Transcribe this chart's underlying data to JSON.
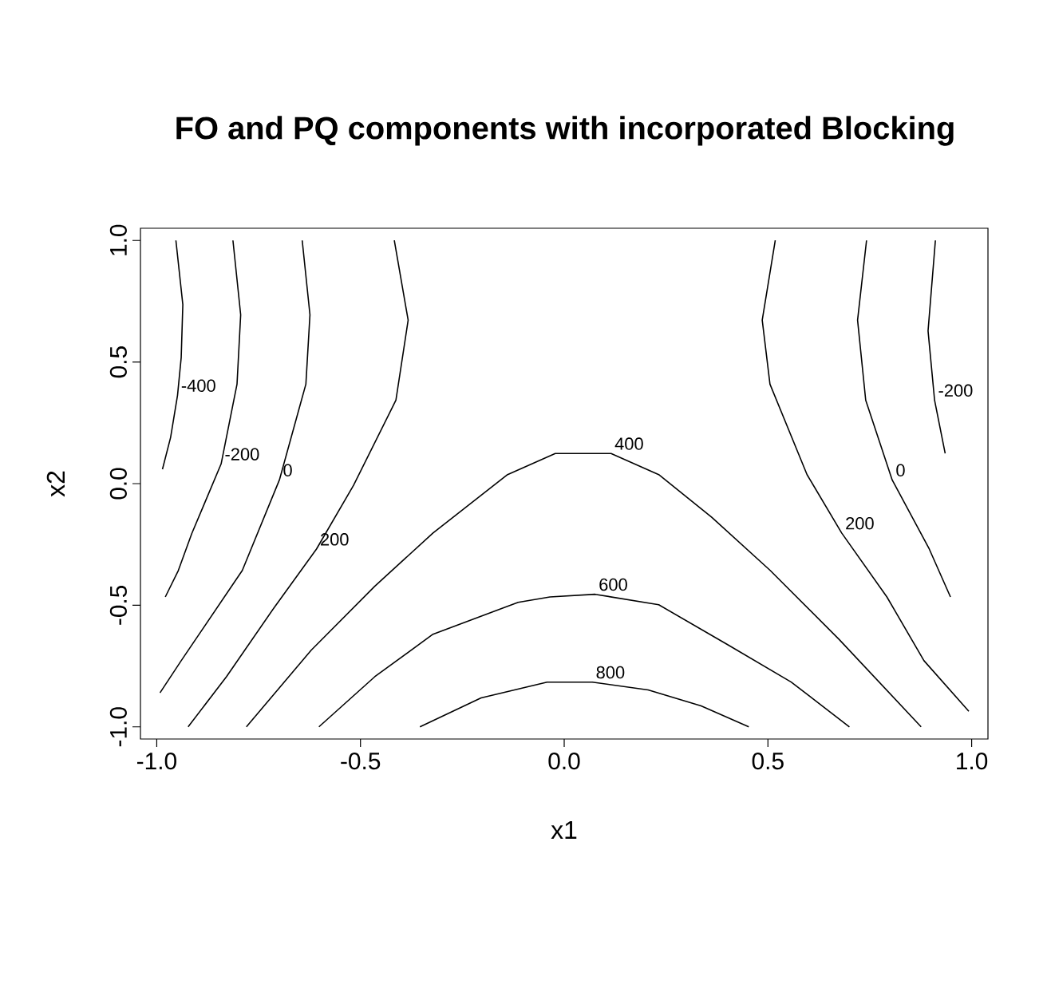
{
  "chart_data": {
    "type": "line",
    "title": "FO and PQ components with incorporated Blocking",
    "xlabel": "x1",
    "ylabel": "x2",
    "xlim": [
      -1.04,
      1.04
    ],
    "ylim": [
      -1.05,
      1.05
    ],
    "xticks": [
      {
        "value": -1,
        "label": "-1.0"
      },
      {
        "value": -0.5,
        "label": "-0.5"
      },
      {
        "value": 0,
        "label": "0.0"
      },
      {
        "value": 0.5,
        "label": "0.5"
      },
      {
        "value": 1,
        "label": "1.0"
      }
    ],
    "yticks": [
      {
        "value": -1,
        "label": "-1.0"
      },
      {
        "value": -0.5,
        "label": "-0.5"
      },
      {
        "value": 0,
        "label": "0.0"
      },
      {
        "value": 0.5,
        "label": "0.5"
      },
      {
        "value": 1,
        "label": "1.0"
      }
    ],
    "grid": false,
    "legend": false,
    "marker": "none",
    "line_style": "solid",
    "series": [
      {
        "name": "-400",
        "color": "#000000",
        "x": [
          -0.953,
          -0.936,
          -0.94,
          -0.949,
          -0.966,
          -0.986
        ],
        "values": [
          1.0,
          0.736,
          0.518,
          0.363,
          0.19,
          0.059
        ]
      },
      {
        "name": "-200",
        "color": "#000000",
        "x": [
          -0.813,
          -0.794,
          -0.803,
          -0.842,
          -0.914,
          -0.947,
          -0.979,
          null,
          0.911,
          0.893,
          0.909,
          0.935
        ],
        "values": [
          1.0,
          0.694,
          0.409,
          0.081,
          -0.205,
          -0.357,
          -0.466,
          null,
          1.0,
          0.628,
          0.343,
          0.124
        ]
      },
      {
        "name": "0",
        "color": "#000000",
        "x": [
          -0.643,
          -0.624,
          -0.634,
          -0.699,
          -0.79,
          -0.94,
          -0.992,
          null,
          0.742,
          0.72,
          0.74,
          0.805,
          0.896,
          0.948
        ],
        "values": [
          1.0,
          0.694,
          0.409,
          0.015,
          -0.357,
          -0.728,
          -0.86,
          null,
          1.0,
          0.672,
          0.343,
          0.015,
          -0.269,
          -0.466
        ]
      },
      {
        "name": "200",
        "color": "#000000",
        "x": [
          -0.417,
          -0.383,
          -0.413,
          -0.517,
          -0.608,
          -0.712,
          -0.829,
          -0.923,
          null,
          0.518,
          0.486,
          0.505,
          0.596,
          0.681,
          0.792,
          0.883,
          0.993
        ],
        "values": [
          1.0,
          0.672,
          0.343,
          -0.007,
          -0.269,
          -0.51,
          -0.794,
          -1.0,
          null,
          1.0,
          0.672,
          0.409,
          0.037,
          -0.203,
          -0.466,
          -0.728,
          -0.936
        ]
      },
      {
        "name": "400",
        "color": "#000000",
        "x": [
          -0.78,
          -0.621,
          -0.465,
          -0.322,
          -0.139,
          -0.022,
          0.115,
          0.232,
          0.362,
          0.505,
          0.675,
          0.876
        ],
        "values": [
          -1.0,
          -0.685,
          -0.422,
          -0.203,
          0.037,
          0.124,
          0.124,
          0.037,
          -0.138,
          -0.356,
          -0.641,
          -1.0
        ]
      },
      {
        "name": "600",
        "color": "#000000",
        "x": [
          -0.602,
          -0.465,
          -0.322,
          -0.113,
          -0.035,
          0.076,
          0.232,
          0.401,
          0.557,
          0.7
        ],
        "values": [
          -1.0,
          -0.794,
          -0.619,
          -0.488,
          -0.466,
          -0.455,
          -0.498,
          -0.662,
          -0.816,
          -1.0
        ]
      },
      {
        "name": "800",
        "color": "#000000",
        "x": [
          -0.354,
          -0.204,
          -0.042,
          0.069,
          0.206,
          0.336,
          0.453
        ],
        "values": [
          -1.0,
          -0.881,
          -0.816,
          -0.816,
          -0.848,
          -0.914,
          -1.0
        ]
      }
    ]
  }
}
